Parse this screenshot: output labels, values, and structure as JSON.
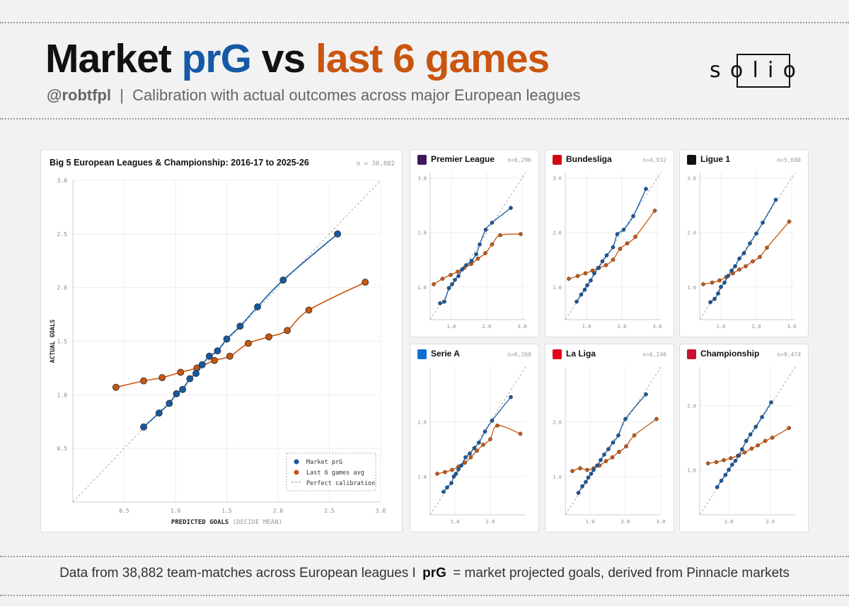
{
  "header": {
    "title_part1": "Market",
    "title_part2": "prG",
    "title_part3": "vs",
    "title_part4": "last 6 games",
    "handle": "@robtfpl",
    "separator": "|",
    "subtitle": "Calibration with actual outcomes across major European leagues",
    "logo_text": "solio"
  },
  "footer": {
    "text_part1": "Data from 38,882 team-matches across European leagues I",
    "text_bold": "prG",
    "text_part2": "= market projected goals, derived from Pinnacle markets"
  },
  "colors": {
    "market": "#1559a5",
    "last6": "#c9560f",
    "perfect": "#aaaaaa",
    "title_blue": "#1559a5",
    "title_orange": "#c9560f"
  },
  "chart_data": [
    {
      "type": "line",
      "title": "Big 5 European Leagues & Championship: 2016-17 to 2025-26",
      "n_label": "n = 38,882",
      "xlabel": "PREDICTED GOALS",
      "xlabel_suffix": "(DECIDE MEAN)",
      "ylabel": "ACTUAL GOALS",
      "xlim": [
        0.0,
        3.0
      ],
      "ylim": [
        0.0,
        3.0
      ],
      "xticks": [
        "0.5",
        "1.0",
        "1.5",
        "2.0",
        "2.5",
        "3.0"
      ],
      "yticks": [
        "0.5",
        "1.0",
        "1.5",
        "2.0",
        "2.5",
        "3.0"
      ],
      "grid": true,
      "legend": {
        "position": "bottom-right",
        "market": "Market prG",
        "last6": "Last 6 games avg",
        "perfect": "Perfect calibration"
      },
      "series": [
        {
          "name": "Market prG",
          "x": [
            0.69,
            0.84,
            0.94,
            1.01,
            1.07,
            1.14,
            1.2,
            1.26,
            1.33,
            1.41,
            1.5,
            1.63,
            1.8,
            2.05,
            2.58
          ],
          "y": [
            0.7,
            0.83,
            0.92,
            1.01,
            1.05,
            1.15,
            1.2,
            1.28,
            1.36,
            1.41,
            1.52,
            1.64,
            1.82,
            2.07,
            2.5
          ]
        },
        {
          "name": "Last 6 games avg",
          "x": [
            0.42,
            0.69,
            0.87,
            1.05,
            1.21,
            1.38,
            1.53,
            1.71,
            1.91,
            2.09,
            2.3,
            2.85
          ],
          "y": [
            1.07,
            1.13,
            1.16,
            1.21,
            1.25,
            1.32,
            1.36,
            1.48,
            1.54,
            1.6,
            1.79,
            2.05
          ]
        }
      ]
    },
    {
      "type": "line",
      "title": "Premier League",
      "n_label": "n=6,296",
      "xlim": [
        0.4,
        3.1
      ],
      "ylim": [
        0.4,
        3.1
      ],
      "xticks": [
        "1.0",
        "2.0",
        "3.0"
      ],
      "yticks": [
        "1.0",
        "2.0",
        "3.0"
      ],
      "series": [
        {
          "name": "Market prG",
          "x": [
            0.68,
            0.8,
            0.93,
            1.02,
            1.1,
            1.2,
            1.3,
            1.42,
            1.57,
            1.7,
            1.8,
            1.97,
            2.15,
            2.68
          ],
          "y": [
            0.7,
            0.73,
            0.98,
            1.05,
            1.13,
            1.2,
            1.32,
            1.4,
            1.48,
            1.6,
            1.78,
            2.05,
            2.18,
            2.45
          ]
        },
        {
          "name": "Last 6 games avg",
          "x": [
            0.5,
            0.75,
            0.98,
            1.18,
            1.36,
            1.56,
            1.75,
            1.96,
            2.15,
            2.38,
            2.96
          ],
          "y": [
            1.05,
            1.15,
            1.22,
            1.28,
            1.35,
            1.42,
            1.52,
            1.62,
            1.78,
            1.95,
            1.97
          ]
        }
      ]
    },
    {
      "type": "line",
      "title": "Bundesliga",
      "n_label": "n=4,932",
      "xlim": [
        0.4,
        3.1
      ],
      "ylim": [
        0.4,
        3.1
      ],
      "xticks": [
        "1.0",
        "2.0",
        "3.0"
      ],
      "yticks": [
        "1.0",
        "2.0",
        "3.0"
      ],
      "series": [
        {
          "name": "Market prG",
          "x": [
            0.72,
            0.85,
            0.95,
            1.02,
            1.12,
            1.22,
            1.33,
            1.45,
            1.57,
            1.75,
            1.87,
            2.05,
            2.32,
            2.68
          ],
          "y": [
            0.73,
            0.86,
            0.95,
            1.03,
            1.12,
            1.25,
            1.35,
            1.47,
            1.58,
            1.73,
            1.97,
            2.05,
            2.3,
            2.8
          ]
        },
        {
          "name": "Last 6 games avg",
          "x": [
            0.5,
            0.75,
            0.97,
            1.17,
            1.35,
            1.55,
            1.75,
            1.95,
            2.15,
            2.38,
            2.93
          ],
          "y": [
            1.15,
            1.2,
            1.25,
            1.3,
            1.35,
            1.4,
            1.5,
            1.7,
            1.8,
            1.92,
            2.4
          ]
        }
      ]
    },
    {
      "type": "line",
      "title": "Ligue 1",
      "n_label": "n=5,680",
      "xlim": [
        0.4,
        3.1
      ],
      "ylim": [
        0.4,
        3.1
      ],
      "xticks": [
        "1.0",
        "2.0",
        "3.0"
      ],
      "yticks": [
        "1.0",
        "2.0",
        "3.0"
      ],
      "series": [
        {
          "name": "Market prG",
          "x": [
            0.7,
            0.82,
            0.92,
            1.0,
            1.1,
            1.2,
            1.3,
            1.4,
            1.52,
            1.65,
            1.82,
            2.0,
            2.18,
            2.55
          ],
          "y": [
            0.72,
            0.78,
            0.88,
            1.0,
            1.08,
            1.2,
            1.3,
            1.38,
            1.52,
            1.62,
            1.8,
            1.98,
            2.18,
            2.6
          ]
        },
        {
          "name": "Last 6 games avg",
          "x": [
            0.5,
            0.75,
            0.96,
            1.15,
            1.34,
            1.52,
            1.7,
            1.9,
            2.1,
            2.3,
            2.93
          ],
          "y": [
            1.05,
            1.08,
            1.12,
            1.18,
            1.25,
            1.32,
            1.38,
            1.47,
            1.55,
            1.72,
            2.2
          ]
        }
      ]
    },
    {
      "type": "line",
      "title": "Serie A",
      "n_label": "n=6,260",
      "xlim": [
        0.3,
        3.0
      ],
      "ylim": [
        0.3,
        3.0
      ],
      "xticks": [
        "1.0",
        "2.0"
      ],
      "yticks": [
        "1.0",
        "2.0"
      ],
      "series": [
        {
          "name": "Market prG",
          "x": [
            0.68,
            0.78,
            0.9,
            0.97,
            1.03,
            1.1,
            1.18,
            1.3,
            1.42,
            1.55,
            1.68,
            1.85,
            2.05,
            2.58
          ],
          "y": [
            0.72,
            0.8,
            0.88,
            1.0,
            1.05,
            1.13,
            1.2,
            1.35,
            1.42,
            1.52,
            1.62,
            1.82,
            2.02,
            2.45
          ]
        },
        {
          "name": "Last 6 games avg",
          "x": [
            0.5,
            0.72,
            0.92,
            1.1,
            1.28,
            1.45,
            1.62,
            1.8,
            2.0,
            2.2,
            2.85
          ],
          "y": [
            1.05,
            1.08,
            1.12,
            1.18,
            1.25,
            1.35,
            1.47,
            1.58,
            1.68,
            1.93,
            1.78
          ]
        }
      ]
    },
    {
      "type": "line",
      "title": "La Liga",
      "n_label": "n=6,240",
      "xlim": [
        0.3,
        3.0
      ],
      "ylim": [
        0.3,
        3.0
      ],
      "xticks": [
        "1.0",
        "2.0",
        "3.0"
      ],
      "yticks": [
        "1.0",
        "2.0"
      ],
      "series": [
        {
          "name": "Market prG",
          "x": [
            0.67,
            0.78,
            0.88,
            0.95,
            1.03,
            1.1,
            1.2,
            1.3,
            1.4,
            1.52,
            1.65,
            1.8,
            2.0,
            2.58
          ],
          "y": [
            0.7,
            0.82,
            0.9,
            0.98,
            1.05,
            1.12,
            1.2,
            1.3,
            1.4,
            1.5,
            1.62,
            1.75,
            2.05,
            2.5
          ]
        },
        {
          "name": "Last 6 games avg",
          "x": [
            0.5,
            0.72,
            0.92,
            1.1,
            1.27,
            1.45,
            1.63,
            1.82,
            2.02,
            2.25,
            2.88
          ],
          "y": [
            1.1,
            1.15,
            1.12,
            1.15,
            1.2,
            1.28,
            1.35,
            1.45,
            1.55,
            1.75,
            2.05
          ]
        }
      ]
    },
    {
      "type": "line",
      "title": "Championship",
      "n_label": "n=9,474",
      "xlim": [
        0.3,
        2.6
      ],
      "ylim": [
        0.3,
        2.6
      ],
      "xticks": [
        "1.0",
        "2.0"
      ],
      "yticks": [
        "1.0",
        "2.0"
      ],
      "series": [
        {
          "name": "Market prG",
          "x": [
            0.72,
            0.82,
            0.92,
            1.0,
            1.08,
            1.16,
            1.24,
            1.32,
            1.42,
            1.52,
            1.65,
            1.8,
            2.02
          ],
          "y": [
            0.73,
            0.83,
            0.92,
            1.0,
            1.08,
            1.14,
            1.22,
            1.32,
            1.45,
            1.55,
            1.67,
            1.82,
            2.05
          ]
        },
        {
          "name": "Last 6 games avg",
          "x": [
            0.5,
            0.7,
            0.88,
            1.05,
            1.22,
            1.38,
            1.55,
            1.7,
            1.88,
            2.05,
            2.45
          ],
          "y": [
            1.1,
            1.12,
            1.15,
            1.18,
            1.22,
            1.27,
            1.33,
            1.38,
            1.45,
            1.5,
            1.65
          ]
        }
      ]
    }
  ]
}
